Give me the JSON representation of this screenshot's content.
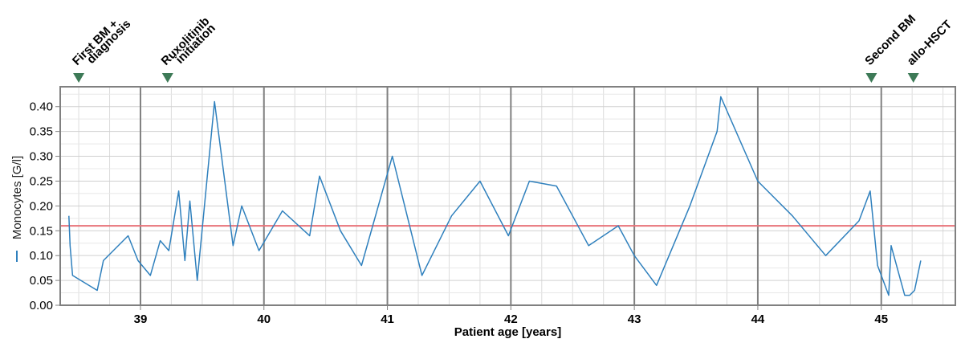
{
  "chart_data": {
    "type": "line",
    "xlabel": "Patient age [years]",
    "ylabel": "Monocytes [G/l]",
    "xlim": [
      38.35,
      45.6
    ],
    "ylim": [
      0,
      0.44
    ],
    "x_ticks": [
      39,
      40,
      41,
      42,
      43,
      44,
      45
    ],
    "y_ticks": [
      0.0,
      0.05,
      0.1,
      0.15,
      0.2,
      0.25,
      0.3,
      0.35,
      0.4
    ],
    "y_tick_labels": [
      "0.00",
      "0.05",
      "0.10",
      "0.15",
      "0.20",
      "0.25",
      "0.30",
      "0.35",
      "0.40"
    ],
    "reference_line": {
      "y": 0.16,
      "color": "#e8737a"
    },
    "grid": true,
    "series": [
      {
        "color": "#2f80bd",
        "x": [
          38.42,
          38.43,
          38.45,
          38.65,
          38.7,
          38.9,
          38.98,
          39.08,
          39.16,
          39.23,
          39.31,
          39.36,
          39.4,
          39.46,
          39.6,
          39.75,
          39.82,
          39.96,
          40.15,
          40.37,
          40.45,
          40.62,
          40.79,
          41.04,
          41.28,
          41.52,
          41.75,
          41.98,
          42.15,
          42.37,
          42.63,
          42.87,
          43.0,
          43.18,
          43.45,
          43.67,
          43.7,
          44.0,
          44.28,
          44.55,
          44.82,
          44.91,
          44.97,
          45.06,
          45.08,
          45.19,
          45.23,
          45.27,
          45.32
        ],
        "values": [
          0.18,
          0.12,
          0.06,
          0.03,
          0.09,
          0.14,
          0.09,
          0.06,
          0.13,
          0.11,
          0.23,
          0.09,
          0.21,
          0.05,
          0.41,
          0.12,
          0.2,
          0.11,
          0.19,
          0.14,
          0.26,
          0.15,
          0.08,
          0.3,
          0.06,
          0.18,
          0.25,
          0.14,
          0.25,
          0.24,
          0.12,
          0.16,
          0.1,
          0.04,
          0.2,
          0.35,
          0.42,
          0.25,
          0.18,
          0.1,
          0.17,
          0.23,
          0.08,
          0.02,
          0.12,
          0.02,
          0.02,
          0.03,
          0.09
        ]
      }
    ],
    "events": [
      {
        "x": 38.5,
        "label_line1": "First BM +",
        "label_line2": "diagnosis"
      },
      {
        "x": 39.22,
        "label_line1": "Ruxolitinib",
        "label_line2": "initiation"
      },
      {
        "x": 44.92,
        "label_line1": "Second BM",
        "label_line2": ""
      },
      {
        "x": 45.26,
        "label_line1": "allo-HSCT",
        "label_line2": ""
      }
    ],
    "event_marker_color": "#3d7a57"
  }
}
